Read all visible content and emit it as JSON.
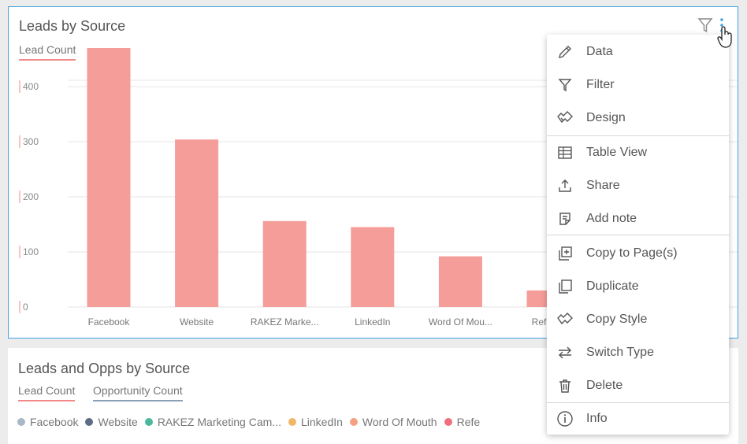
{
  "card1": {
    "title": "Leads by Source",
    "tab": "Lead Count"
  },
  "chart_data": {
    "type": "bar",
    "categories": [
      "Facebook",
      "Website",
      "RAKEZ Marke...",
      "LinkedIn",
      "Word Of Mou...",
      "Referr..."
    ],
    "values": [
      470,
      304,
      156,
      145,
      92,
      30
    ],
    "yticks": [
      "400",
      "300",
      "200",
      "100",
      "0"
    ],
    "ylim": [
      0,
      500
    ],
    "grid": true,
    "color": "#f59d99"
  },
  "card2": {
    "title": "Leads and Opps by Source",
    "tabs": [
      "Lead Count",
      "Opportunity Count"
    ],
    "legend": [
      {
        "label": "Facebook",
        "color": "#a9b8c6"
      },
      {
        "label": "Website",
        "color": "#5d6d86"
      },
      {
        "label": "RAKEZ Marketing Cam...",
        "color": "#4bb89e"
      },
      {
        "label": "LinkedIn",
        "color": "#f0b766"
      },
      {
        "label": "Word Of Mouth",
        "color": "#f5a07e"
      },
      {
        "label": "Refe",
        "color": "#ef6f7e"
      }
    ]
  },
  "menu": {
    "items": [
      {
        "label": "Data",
        "icon": "pencil-icon"
      },
      {
        "label": "Filter",
        "icon": "filter-icon"
      },
      {
        "label": "Design",
        "icon": "design-icon"
      },
      {
        "label": "Table View",
        "icon": "table-icon"
      },
      {
        "label": "Share",
        "icon": "share-icon"
      },
      {
        "label": "Add note",
        "icon": "note-icon"
      },
      {
        "label": "Copy to Page(s)",
        "icon": "copy-to-page-icon"
      },
      {
        "label": "Duplicate",
        "icon": "duplicate-icon"
      },
      {
        "label": "Copy Style",
        "icon": "copy-style-icon"
      },
      {
        "label": "Switch Type",
        "icon": "switch-type-icon"
      },
      {
        "label": "Delete",
        "icon": "trash-icon"
      },
      {
        "label": "Info",
        "icon": "info-icon"
      }
    ]
  }
}
